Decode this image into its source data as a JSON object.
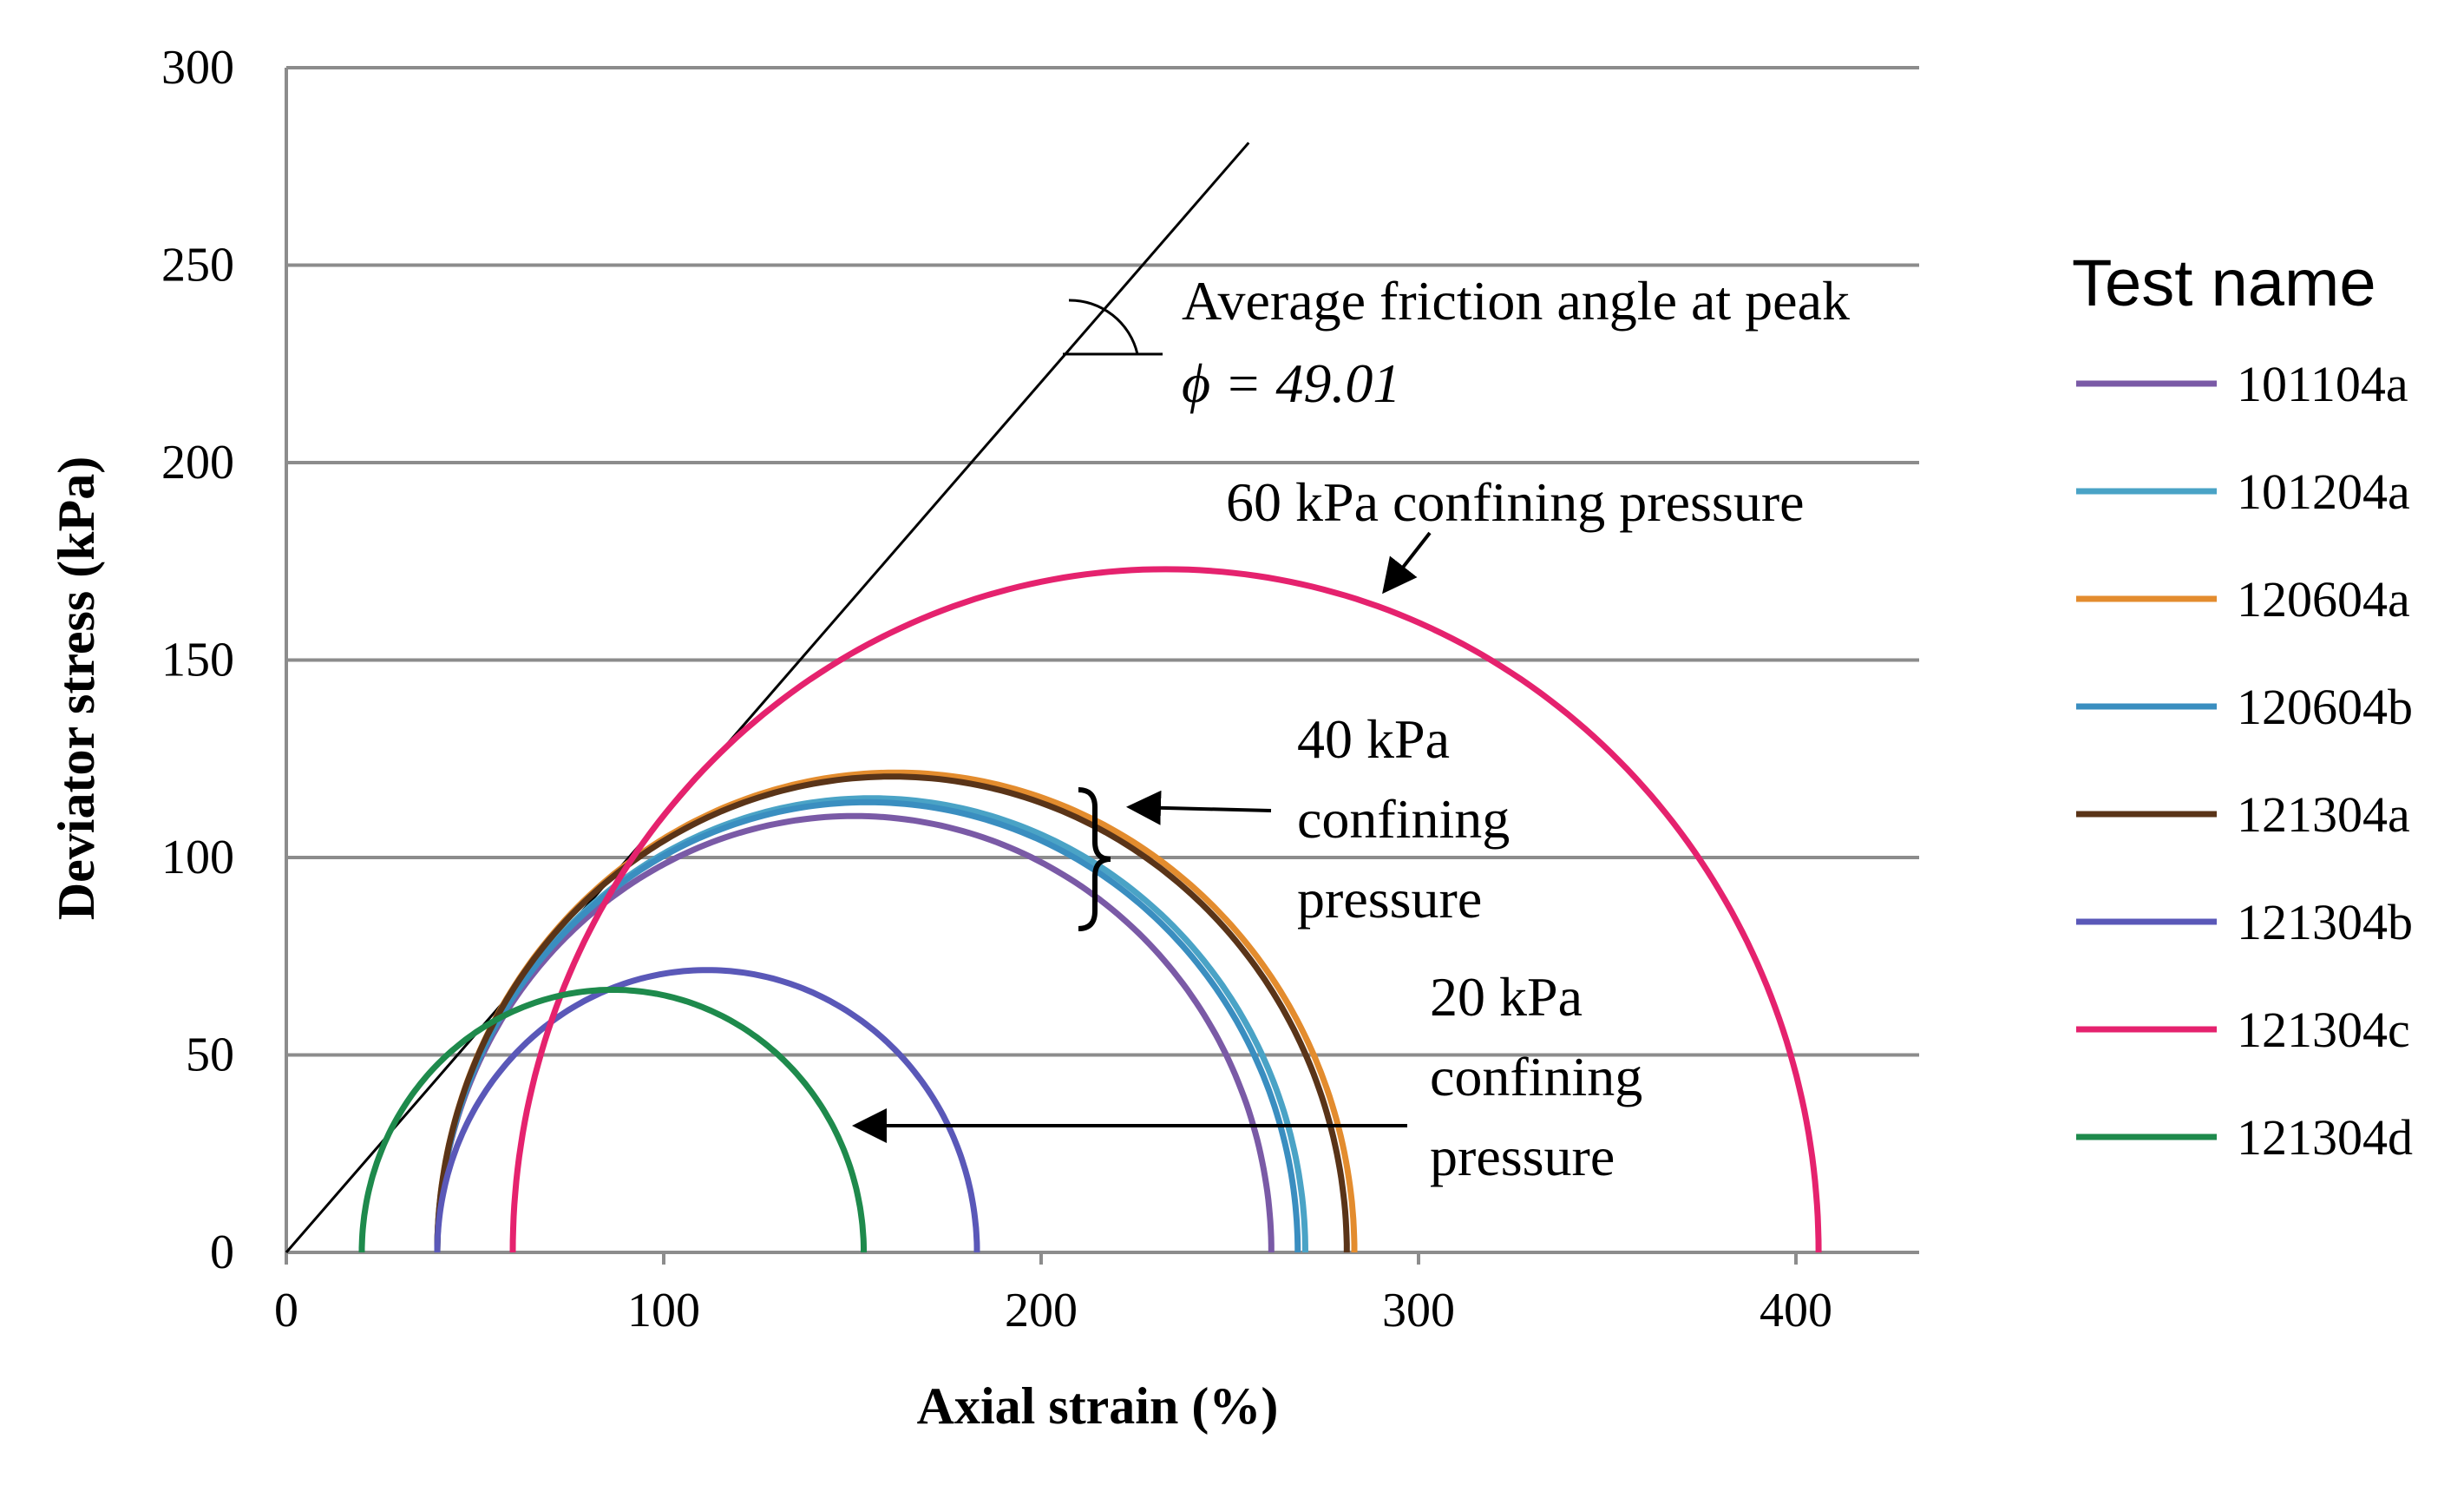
{
  "chart_data": {
    "type": "line",
    "plot_style": "Mohr circles (semicircles) with friction envelope",
    "xlabel": "Axial strain (%)",
    "ylabel": "Deviator stress (kPa)",
    "xlim": [
      0,
      435
    ],
    "ylim": [
      0,
      300
    ],
    "xticks": [
      0,
      100,
      200,
      300,
      400
    ],
    "yticks": [
      0,
      50,
      100,
      150,
      200,
      250,
      300
    ],
    "grid": "horizontal",
    "legend": {
      "title": "Test name",
      "placement": "right"
    },
    "series": [
      {
        "name": "101104a",
        "color": "#7a5aa6",
        "sigma3": 40,
        "sigma1": 261
      },
      {
        "name": "101204a",
        "color": "#4aa3c6",
        "sigma3": 40,
        "sigma1": 270
      },
      {
        "name": "120604a",
        "color": "#e38c2e",
        "sigma3": 40,
        "sigma1": 283
      },
      {
        "name": "120604b",
        "color": "#3a8ec0",
        "sigma3": 40,
        "sigma1": 268
      },
      {
        "name": "121304a",
        "color": "#5a3418",
        "sigma3": 40,
        "sigma1": 281
      },
      {
        "name": "121304b",
        "color": "#5a58b8",
        "sigma3": 40,
        "sigma1": 183
      },
      {
        "name": "121304c",
        "color": "#e5226e",
        "sigma3": 60,
        "sigma1": 406
      },
      {
        "name": "121304d",
        "color": "#1e8a4c",
        "sigma3": 20,
        "sigma1": 153
      }
    ],
    "envelope": {
      "x": [
        0,
        255
      ],
      "y": [
        0,
        281
      ],
      "color": "#000000"
    },
    "annotations": {
      "friction_line1": "Average friction angle at peak",
      "friction_line2": "ϕ = 49.01",
      "p60": "60 kPa confining pressure",
      "p40_line1": "40 kPa",
      "p40_line2": "confining",
      "p40_line3": "pressure",
      "p20_line1": "20 kPa",
      "p20_line2": "confining",
      "p20_line3": "pressure"
    }
  }
}
